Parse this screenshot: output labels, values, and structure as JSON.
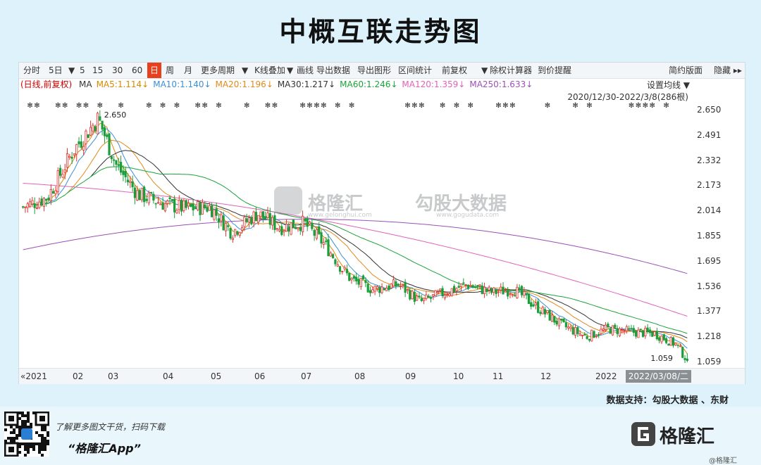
{
  "title": "中概互联走势图",
  "toolbar": {
    "items": [
      {
        "label": "分时"
      },
      {
        "label": "5日"
      },
      {
        "label": "▼"
      },
      {
        "label": "5"
      },
      {
        "label": "15"
      },
      {
        "label": "30"
      },
      {
        "label": "60"
      },
      {
        "label": "日"
      },
      {
        "label": "周"
      },
      {
        "label": "月"
      },
      {
        "label": "更多周期"
      },
      {
        "label": "▼"
      },
      {
        "label": "K线叠加"
      },
      {
        "label": "▼"
      },
      {
        "label": "画线"
      },
      {
        "label": "导出数据"
      },
      {
        "label": "导出图形"
      },
      {
        "label": "区间统计"
      },
      {
        "label": "前复权"
      },
      {
        "label": "▼"
      },
      {
        "label": "除权计算器"
      },
      {
        "label": "到价提醒"
      }
    ],
    "right": [
      "简约版面",
      "隐藏 ▸▸"
    ]
  },
  "ma_line": {
    "prefix": "(日线,前复权)",
    "items": [
      {
        "label": "MA",
        "color": "#333333"
      },
      {
        "label": "MA5:1.114↓",
        "color": "#d68a00"
      },
      {
        "label": "MA10:1.140↓",
        "color": "#3b8fd6"
      },
      {
        "label": "MA20:1.196↓",
        "color": "#e08a1e"
      },
      {
        "label": "MA30:1.217↓",
        "color": "#333333"
      },
      {
        "label": "MA60:1.246↓",
        "color": "#1aa33a"
      },
      {
        "label": "MA120:1.359↓",
        "color": "#e063b8"
      },
      {
        "label": "MA250:1.633↓",
        "color": "#9b4fb8"
      }
    ]
  },
  "setting_label": "设置均线 ▼",
  "range_label": "2020/12/30-2022/3/8(286根)",
  "watermark": {
    "name1": "格隆汇",
    "sub1": "www.gelonghui.com",
    "name2": "勾股大数据",
    "sub2": "www.gogudata.com"
  },
  "source_label": "数据支持：勾股大数据 、东财",
  "footer": {
    "line1": "了解更多图文干货，扫码下载",
    "line2": "“格隆汇App”",
    "logo_text": "格隆汇",
    "logo_sub": "@格隆汇"
  },
  "chart_data": {
    "type": "candlestick",
    "x_start": "2020/12/30",
    "x_end": "2022/3/8",
    "bars": 286,
    "x_labels": [
      "«2021",
      "02",
      "03",
      "04",
      "05",
      "06",
      "07",
      "08",
      "09",
      "10",
      "11",
      "12",
      "2022",
      "2022/03/08/二"
    ],
    "y_ticks": [
      2.65,
      2.491,
      2.332,
      2.173,
      2.014,
      1.855,
      1.695,
      1.536,
      1.377,
      1.218,
      1.059
    ],
    "ylim": [
      1.059,
      2.65
    ],
    "annotations": [
      {
        "label": "2.650",
        "x": "2021/02/17",
        "y": 2.65
      },
      {
        "label": "1.059",
        "x": "2022/03/08",
        "y": 1.059
      }
    ],
    "up_color": "#e3342f",
    "down_color": "#1a9e3a",
    "close_anchors": [
      [
        "2020-12-30",
        2.04
      ],
      [
        "2021-01-15",
        2.1
      ],
      [
        "2021-02-01",
        2.4
      ],
      [
        "2021-02-17",
        2.6
      ],
      [
        "2021-03-01",
        2.3
      ],
      [
        "2021-03-15",
        2.12
      ],
      [
        "2021-04-01",
        2.06
      ],
      [
        "2021-04-15",
        2.03
      ],
      [
        "2021-05-01",
        2.04
      ],
      [
        "2021-05-15",
        1.88
      ],
      [
        "2021-06-01",
        2.0
      ],
      [
        "2021-06-15",
        1.91
      ],
      [
        "2021-07-01",
        1.94
      ],
      [
        "2021-07-15",
        1.8
      ],
      [
        "2021-07-26",
        1.65
      ],
      [
        "2021-08-01",
        1.58
      ],
      [
        "2021-08-15",
        1.52
      ],
      [
        "2021-09-01",
        1.55
      ],
      [
        "2021-09-15",
        1.44
      ],
      [
        "2021-10-01",
        1.5
      ],
      [
        "2021-10-15",
        1.55
      ],
      [
        "2021-11-01",
        1.5
      ],
      [
        "2021-11-15",
        1.52
      ],
      [
        "2021-12-01",
        1.4
      ],
      [
        "2021-12-15",
        1.3
      ],
      [
        "2022-01-01",
        1.22
      ],
      [
        "2022-01-15",
        1.27
      ],
      [
        "2022-02-01",
        1.25
      ],
      [
        "2022-02-15",
        1.24
      ],
      [
        "2022-03-01",
        1.17
      ],
      [
        "2022-03-08",
        1.07
      ]
    ],
    "ma_series": [
      {
        "name": "MA5",
        "color": "#d68a00",
        "last": 1.114
      },
      {
        "name": "MA10",
        "color": "#3b8fd6",
        "last": 1.14
      },
      {
        "name": "MA20",
        "color": "#e08a1e",
        "last": 1.196
      },
      {
        "name": "MA30",
        "color": "#333333",
        "last": 1.217
      },
      {
        "name": "MA60",
        "color": "#1aa33a",
        "last": 1.246
      },
      {
        "name": "MA120",
        "color": "#e063b8",
        "last": 1.359
      },
      {
        "name": "MA250",
        "color": "#9b4fb8",
        "last": 1.633
      }
    ]
  }
}
